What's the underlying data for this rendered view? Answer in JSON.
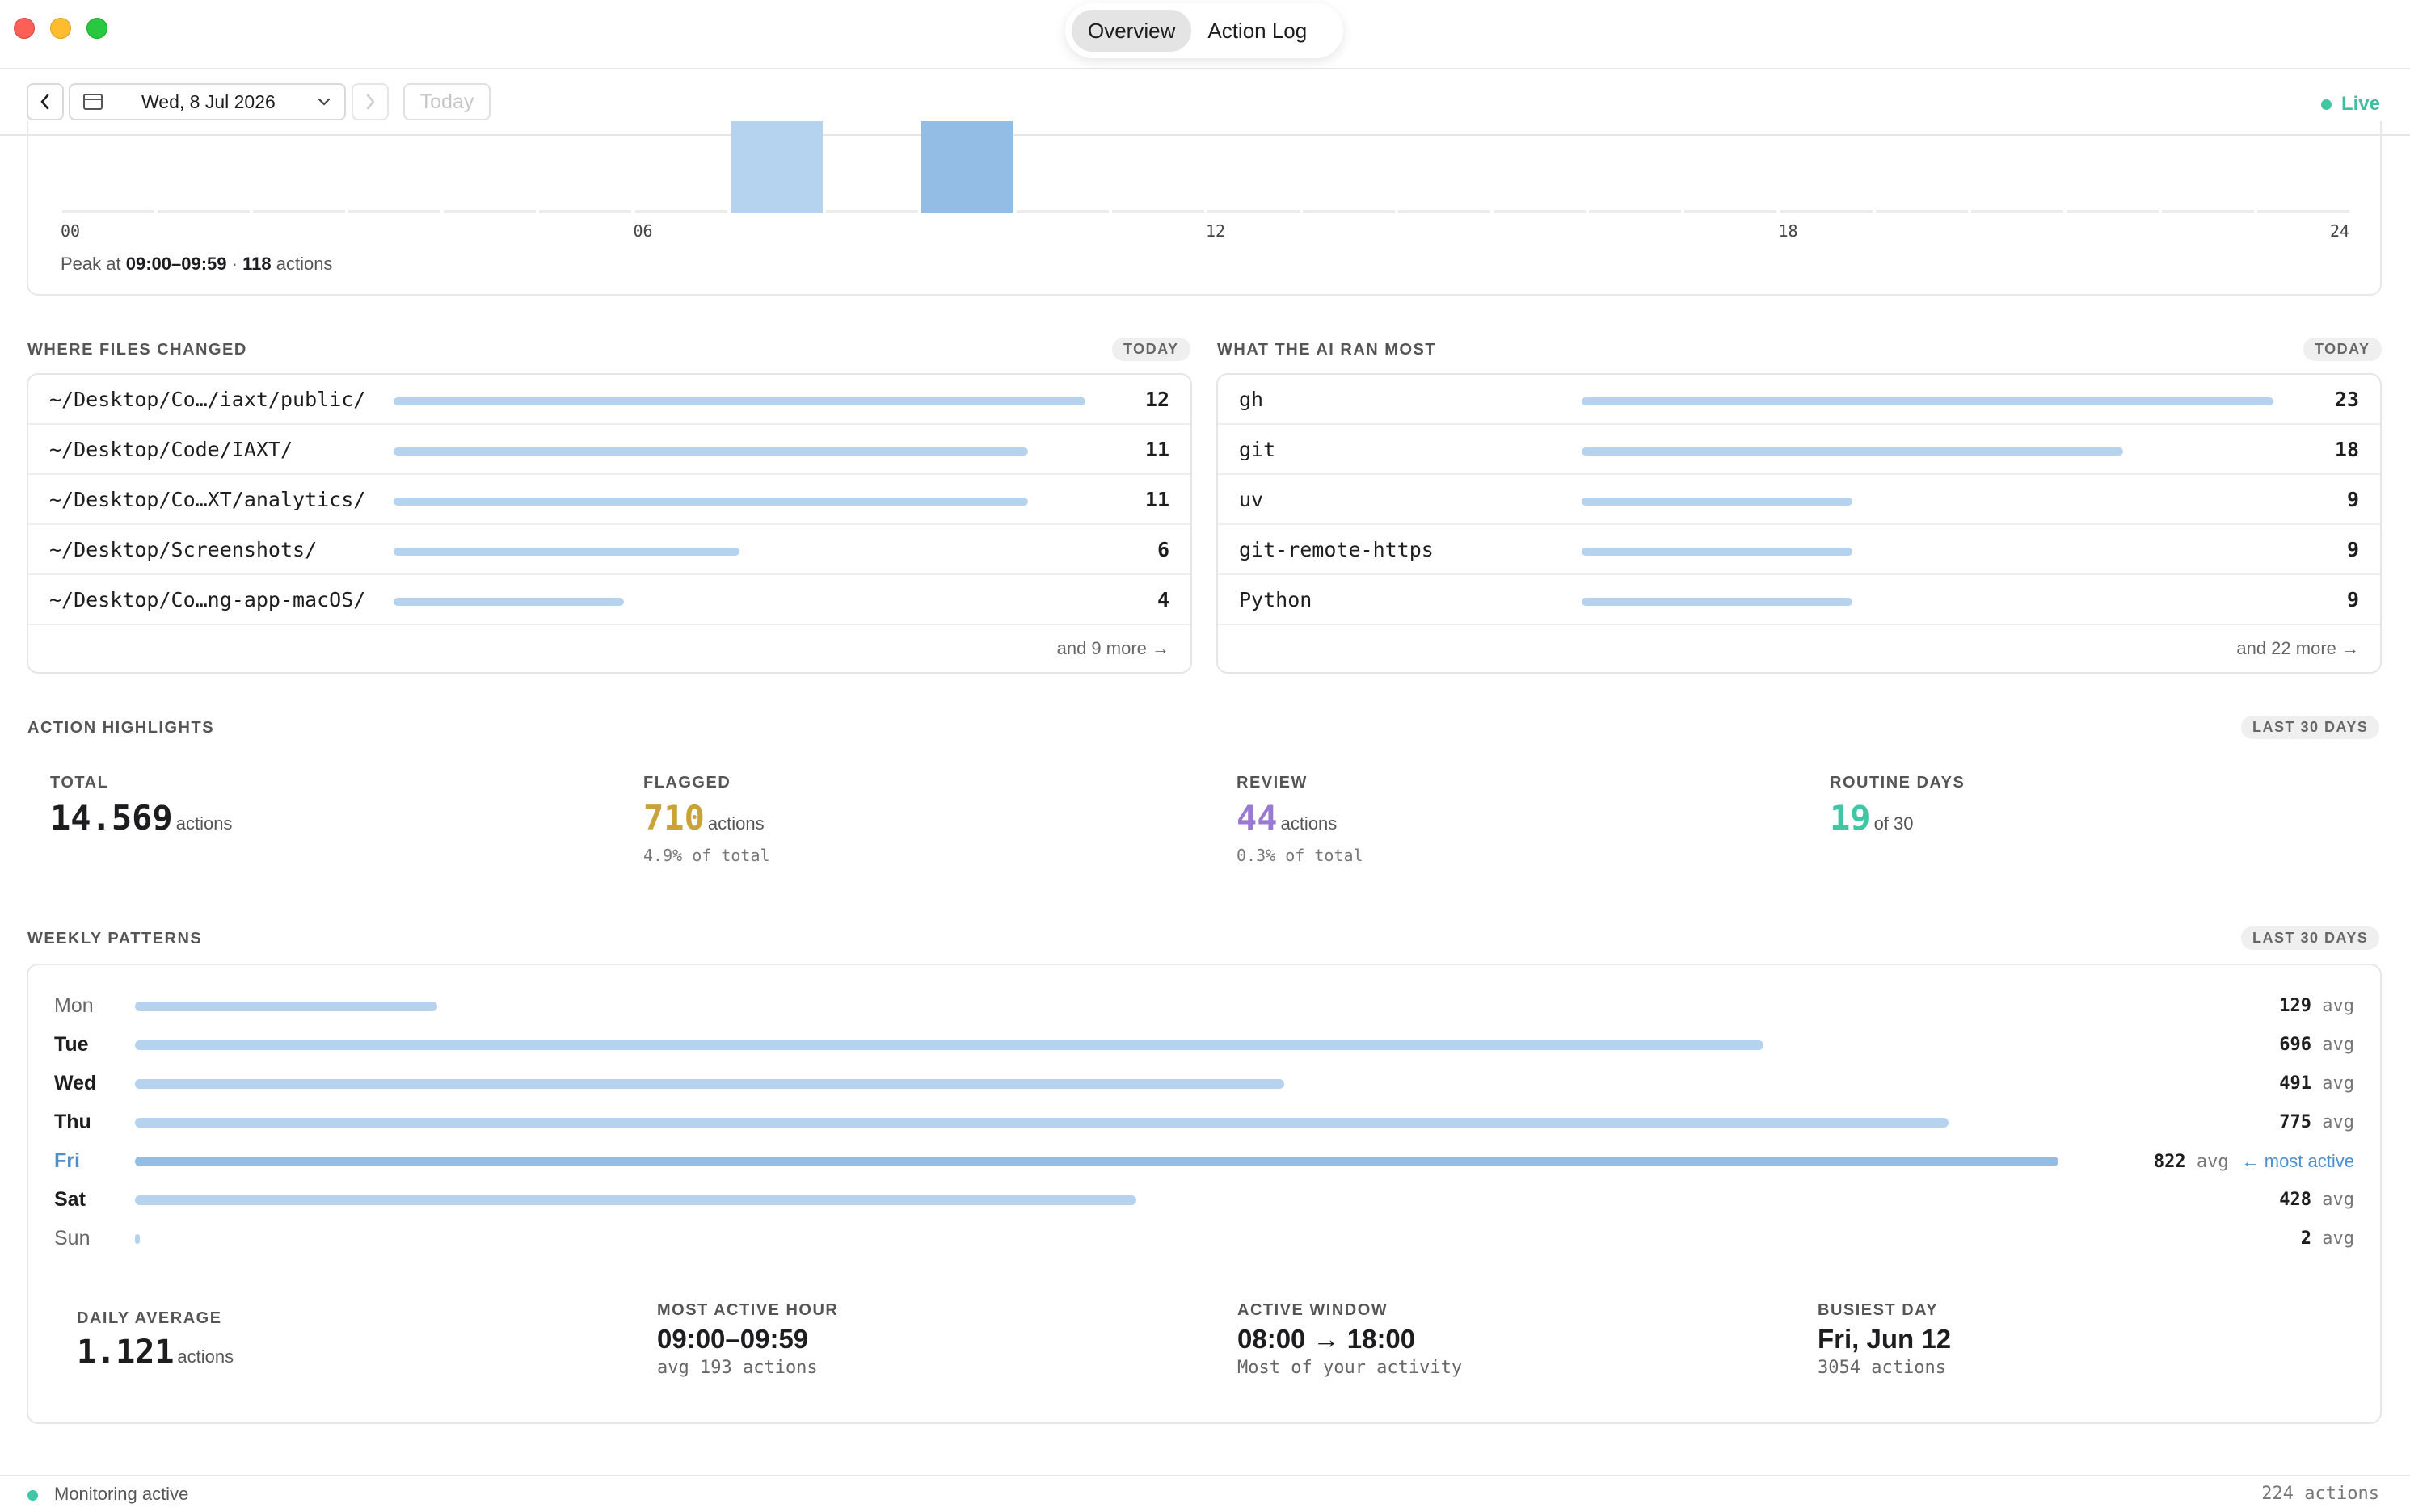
{
  "titlebar": {
    "tabs": [
      {
        "label": "Overview",
        "active": true
      },
      {
        "label": "Action Log",
        "active": false
      }
    ]
  },
  "toolbar": {
    "prev_icon": "chevron-left-icon",
    "date_label": "Wed, 8 Jul 2026",
    "next_icon": "chevron-right-icon",
    "today_label": "Today",
    "live_label": "Live"
  },
  "hourly": {
    "axis_labels": [
      "00",
      "06",
      "12",
      "18",
      "24"
    ],
    "peak_prefix": "Peak at",
    "peak_window": "09:00–09:59",
    "peak_sep": "·",
    "peak_count": "118",
    "peak_suffix": "actions",
    "highlight_hours": [
      {
        "hour": 7
      },
      {
        "hour": 9,
        "peak": true
      }
    ]
  },
  "files": {
    "title": "WHERE FILES CHANGED",
    "badge": "TODAY",
    "rows": [
      {
        "path": "~/Desktop/Co…/iaxt/public/",
        "count": 12
      },
      {
        "path": "~/Desktop/Code/IAXT/",
        "count": 11
      },
      {
        "path": "~/Desktop/Co…XT/analytics/",
        "count": 11
      },
      {
        "path": "~/Desktop/Screenshots/",
        "count": 6
      },
      {
        "path": "~/Desktop/Co…ng-app-macOS/",
        "count": 4
      }
    ],
    "more": "and 9 more →"
  },
  "commands": {
    "title": "WHAT THE AI RAN MOST",
    "badge": "TODAY",
    "rows": [
      {
        "name": "gh",
        "count": 23
      },
      {
        "name": "git",
        "count": 18
      },
      {
        "name": "uv",
        "count": 9
      },
      {
        "name": "git-remote-https",
        "count": 9
      },
      {
        "name": "Python",
        "count": 9
      }
    ],
    "more": "and 22 more →"
  },
  "highlights": {
    "title": "ACTION HIGHLIGHTS",
    "badge": "LAST 30 DAYS",
    "total": {
      "label": "TOTAL",
      "value": "14.569",
      "unit": "actions"
    },
    "flagged": {
      "label": "FLAGGED",
      "value": "710",
      "unit": "actions",
      "sub": "4.9% of total",
      "color": "#c9a23a"
    },
    "review": {
      "label": "REVIEW",
      "value": "44",
      "unit": "actions",
      "sub": "0.3% of total",
      "color": "#9a7ad0"
    },
    "routine": {
      "label": "ROUTINE DAYS",
      "value": "19",
      "unit": "of 30",
      "color": "#3fc6a3"
    }
  },
  "weekly": {
    "title": "WEEKLY PATTERNS",
    "badge": "LAST 30 DAYS",
    "avg_word": "avg",
    "max_value": 822,
    "days": [
      {
        "day": "Mon",
        "value": 129
      },
      {
        "day": "Tue",
        "value": 696
      },
      {
        "day": "Wed",
        "value": 491
      },
      {
        "day": "Thu",
        "value": 775
      },
      {
        "day": "Fri",
        "value": 822,
        "most_active": true,
        "note": "← most active"
      },
      {
        "day": "Sat",
        "value": 428
      },
      {
        "day": "Sun",
        "value": 2
      }
    ],
    "stats": {
      "daily_average": {
        "label": "DAILY AVERAGE",
        "value": "1.121",
        "unit": "actions"
      },
      "most_active_hour": {
        "label": "MOST ACTIVE HOUR",
        "value": "09:00–09:59",
        "sub": "avg 193 actions"
      },
      "active_window": {
        "label": "ACTIVE WINDOW",
        "value": "08:00 → 18:00",
        "sub": "Most of your activity"
      },
      "busiest_day": {
        "label": "BUSIEST DAY",
        "value": "Fri, Jun 12",
        "sub": "3054 actions"
      }
    }
  },
  "statusbar": {
    "label": "Monitoring active",
    "count": "224 actions"
  },
  "colors": {
    "bar": "#b5d2ee",
    "bar_peak": "#93bde4",
    "accent_blue": "#4a90d0",
    "live_green": "#3fc6a3"
  }
}
